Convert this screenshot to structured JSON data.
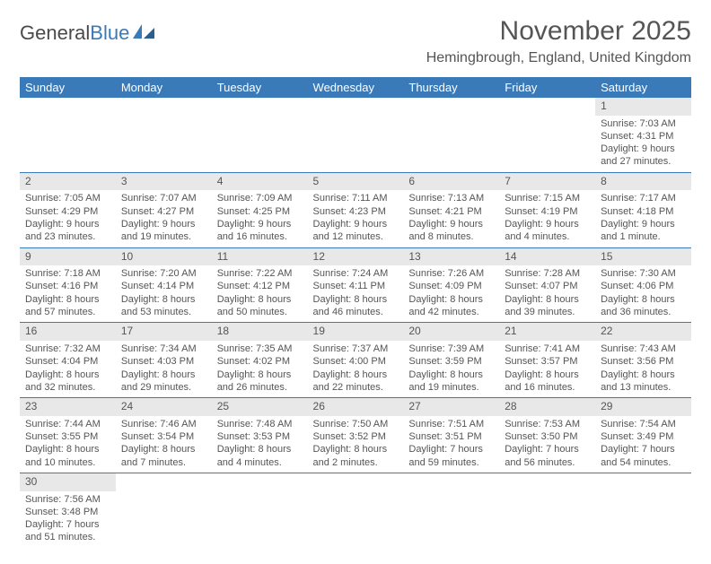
{
  "logo": {
    "part1": "General",
    "part2": "Blue"
  },
  "title": "November 2025",
  "location": "Hemingbrough, England, United Kingdom",
  "colors": {
    "header_bg": "#3a7ab8",
    "header_text": "#ffffff",
    "daynum_bg": "#e8e8e8",
    "text": "#555555",
    "border": "#3a7ab8"
  },
  "weekdays": [
    "Sunday",
    "Monday",
    "Tuesday",
    "Wednesday",
    "Thursday",
    "Friday",
    "Saturday"
  ],
  "weeks": [
    [
      null,
      null,
      null,
      null,
      null,
      null,
      {
        "n": "1",
        "rise": "Sunrise: 7:03 AM",
        "set": "Sunset: 4:31 PM",
        "day": "Daylight: 9 hours and 27 minutes."
      }
    ],
    [
      {
        "n": "2",
        "rise": "Sunrise: 7:05 AM",
        "set": "Sunset: 4:29 PM",
        "day": "Daylight: 9 hours and 23 minutes."
      },
      {
        "n": "3",
        "rise": "Sunrise: 7:07 AM",
        "set": "Sunset: 4:27 PM",
        "day": "Daylight: 9 hours and 19 minutes."
      },
      {
        "n": "4",
        "rise": "Sunrise: 7:09 AM",
        "set": "Sunset: 4:25 PM",
        "day": "Daylight: 9 hours and 16 minutes."
      },
      {
        "n": "5",
        "rise": "Sunrise: 7:11 AM",
        "set": "Sunset: 4:23 PM",
        "day": "Daylight: 9 hours and 12 minutes."
      },
      {
        "n": "6",
        "rise": "Sunrise: 7:13 AM",
        "set": "Sunset: 4:21 PM",
        "day": "Daylight: 9 hours and 8 minutes."
      },
      {
        "n": "7",
        "rise": "Sunrise: 7:15 AM",
        "set": "Sunset: 4:19 PM",
        "day": "Daylight: 9 hours and 4 minutes."
      },
      {
        "n": "8",
        "rise": "Sunrise: 7:17 AM",
        "set": "Sunset: 4:18 PM",
        "day": "Daylight: 9 hours and 1 minute."
      }
    ],
    [
      {
        "n": "9",
        "rise": "Sunrise: 7:18 AM",
        "set": "Sunset: 4:16 PM",
        "day": "Daylight: 8 hours and 57 minutes."
      },
      {
        "n": "10",
        "rise": "Sunrise: 7:20 AM",
        "set": "Sunset: 4:14 PM",
        "day": "Daylight: 8 hours and 53 minutes."
      },
      {
        "n": "11",
        "rise": "Sunrise: 7:22 AM",
        "set": "Sunset: 4:12 PM",
        "day": "Daylight: 8 hours and 50 minutes."
      },
      {
        "n": "12",
        "rise": "Sunrise: 7:24 AM",
        "set": "Sunset: 4:11 PM",
        "day": "Daylight: 8 hours and 46 minutes."
      },
      {
        "n": "13",
        "rise": "Sunrise: 7:26 AM",
        "set": "Sunset: 4:09 PM",
        "day": "Daylight: 8 hours and 42 minutes."
      },
      {
        "n": "14",
        "rise": "Sunrise: 7:28 AM",
        "set": "Sunset: 4:07 PM",
        "day": "Daylight: 8 hours and 39 minutes."
      },
      {
        "n": "15",
        "rise": "Sunrise: 7:30 AM",
        "set": "Sunset: 4:06 PM",
        "day": "Daylight: 8 hours and 36 minutes."
      }
    ],
    [
      {
        "n": "16",
        "rise": "Sunrise: 7:32 AM",
        "set": "Sunset: 4:04 PM",
        "day": "Daylight: 8 hours and 32 minutes."
      },
      {
        "n": "17",
        "rise": "Sunrise: 7:34 AM",
        "set": "Sunset: 4:03 PM",
        "day": "Daylight: 8 hours and 29 minutes."
      },
      {
        "n": "18",
        "rise": "Sunrise: 7:35 AM",
        "set": "Sunset: 4:02 PM",
        "day": "Daylight: 8 hours and 26 minutes."
      },
      {
        "n": "19",
        "rise": "Sunrise: 7:37 AM",
        "set": "Sunset: 4:00 PM",
        "day": "Daylight: 8 hours and 22 minutes."
      },
      {
        "n": "20",
        "rise": "Sunrise: 7:39 AM",
        "set": "Sunset: 3:59 PM",
        "day": "Daylight: 8 hours and 19 minutes."
      },
      {
        "n": "21",
        "rise": "Sunrise: 7:41 AM",
        "set": "Sunset: 3:57 PM",
        "day": "Daylight: 8 hours and 16 minutes."
      },
      {
        "n": "22",
        "rise": "Sunrise: 7:43 AM",
        "set": "Sunset: 3:56 PM",
        "day": "Daylight: 8 hours and 13 minutes."
      }
    ],
    [
      {
        "n": "23",
        "rise": "Sunrise: 7:44 AM",
        "set": "Sunset: 3:55 PM",
        "day": "Daylight: 8 hours and 10 minutes."
      },
      {
        "n": "24",
        "rise": "Sunrise: 7:46 AM",
        "set": "Sunset: 3:54 PM",
        "day": "Daylight: 8 hours and 7 minutes."
      },
      {
        "n": "25",
        "rise": "Sunrise: 7:48 AM",
        "set": "Sunset: 3:53 PM",
        "day": "Daylight: 8 hours and 4 minutes."
      },
      {
        "n": "26",
        "rise": "Sunrise: 7:50 AM",
        "set": "Sunset: 3:52 PM",
        "day": "Daylight: 8 hours and 2 minutes."
      },
      {
        "n": "27",
        "rise": "Sunrise: 7:51 AM",
        "set": "Sunset: 3:51 PM",
        "day": "Daylight: 7 hours and 59 minutes."
      },
      {
        "n": "28",
        "rise": "Sunrise: 7:53 AM",
        "set": "Sunset: 3:50 PM",
        "day": "Daylight: 7 hours and 56 minutes."
      },
      {
        "n": "29",
        "rise": "Sunrise: 7:54 AM",
        "set": "Sunset: 3:49 PM",
        "day": "Daylight: 7 hours and 54 minutes."
      }
    ],
    [
      {
        "n": "30",
        "rise": "Sunrise: 7:56 AM",
        "set": "Sunset: 3:48 PM",
        "day": "Daylight: 7 hours and 51 minutes."
      },
      null,
      null,
      null,
      null,
      null,
      null
    ]
  ]
}
